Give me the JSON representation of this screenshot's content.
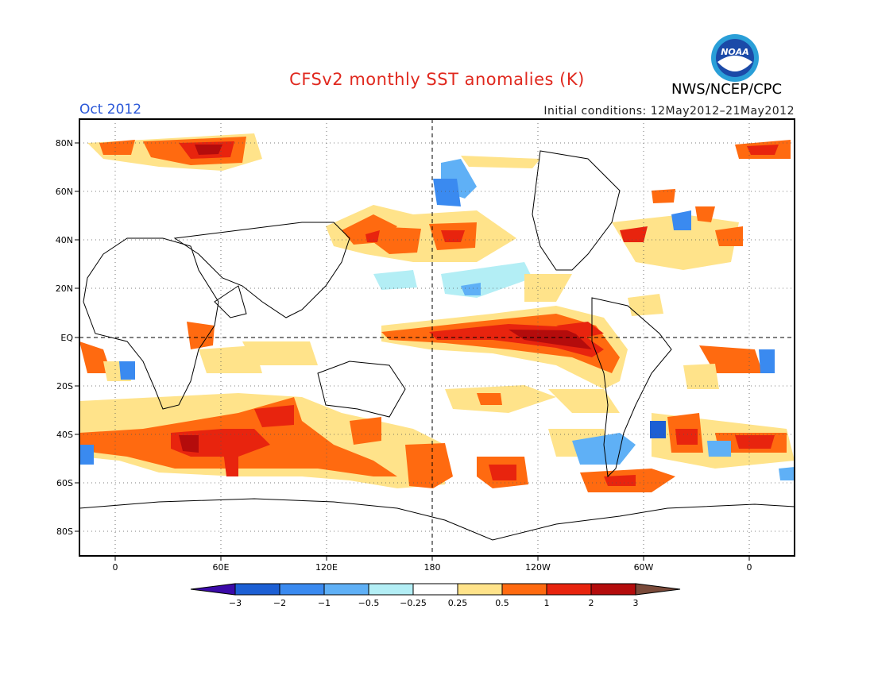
{
  "header": {
    "title": "CFSv2 monthly SST anomalies (K)",
    "month": "Oct 2012",
    "initial_conditions": "Initial conditions: 12May2012–21May2012",
    "agency": "NWS/NCEP/CPC",
    "logo_text": "NOAA"
  },
  "map": {
    "lat_labels": [
      "80N",
      "60N",
      "40N",
      "20N",
      "EQ",
      "20S",
      "40S",
      "60S",
      "80S"
    ],
    "lon_labels": [
      "0",
      "60E",
      "120E",
      "180",
      "120W",
      "60W",
      "0"
    ]
  },
  "colorbar": {
    "labels": [
      "−3",
      "−2",
      "−1",
      "−0.5",
      "−0.25",
      "0.25",
      "0.5",
      "1",
      "2",
      "3"
    ],
    "colors": [
      "#3b0aa8",
      "#1c5fd4",
      "#3a8af0",
      "#5fb0f6",
      "#b3eef5",
      "#ffffff",
      "#ffe38a",
      "#ff6a10",
      "#e8240e",
      "#b40c0c",
      "#7a4a3a"
    ]
  }
}
